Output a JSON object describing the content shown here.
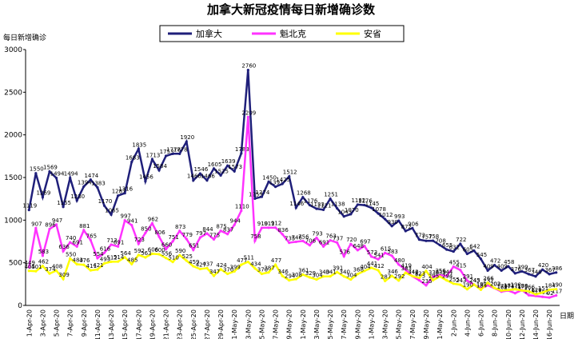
{
  "chart_data": {
    "type": "line",
    "title": "加拿大新冠疫情每日新增确诊数",
    "y_label": "每日新增确诊",
    "x_label": "日期",
    "categories": [
      "1-Apr-20",
      null,
      "3-Apr-20",
      null,
      "5-Apr-20",
      null,
      "7-Apr-20",
      null,
      "9-Apr-20",
      null,
      "11-Apr-20",
      null,
      "13-Apr-20",
      null,
      "15-Apr-20",
      null,
      "17-Apr-20",
      null,
      "19-Apr-20",
      null,
      "21-Apr-20",
      null,
      "23-Apr-20",
      null,
      "25-Apr-20",
      null,
      "27-Apr-20",
      null,
      "29-Apr-20",
      null,
      "1-May-20",
      null,
      "3-May-20",
      null,
      "5-May-20",
      null,
      "7-May-20",
      null,
      "9-May-20",
      null,
      "11-May-20",
      null,
      "13-May-20",
      null,
      "15-May-20",
      null,
      "17-May-20",
      null,
      "19-May-20",
      null,
      "21-May-20",
      null,
      "23-May-20",
      null,
      "25-May-20",
      null,
      "27-May-20",
      null,
      "29-May-20",
      null,
      "31-May-20",
      null,
      "2-Jun-20",
      null,
      "4-Jun-20",
      null,
      "6-Jun-20",
      null,
      "8-Jun-20",
      null,
      "10-Jun-20",
      null,
      "12-Jun-20",
      null,
      "14-Jun-20",
      null,
      "16-Jun-20",
      null
    ],
    "series": [
      {
        "name": "加拿大",
        "color": "#1f1f7a",
        "values": [
          1119,
          1550,
          1269,
          1569,
          1494,
          1155,
          1494,
          1230,
          1394,
          1474,
          1383,
          1170,
          1065,
          1287,
          1316,
          1683,
          1835,
          1456,
          1713,
          1584,
          1753,
          1778,
          1778,
          1920,
          1466,
          1546,
          1466,
          1605,
          1525,
          1639,
          1573,
          1783,
          2760,
          1253,
          1274,
          1450,
          1391,
          1425,
          1512,
          1146,
          1268,
          1176,
          1133,
          1121,
          1251,
          1138,
          1043,
          1070,
          1182,
          1176,
          1145,
          1078,
          1012,
          930,
          993,
          872,
          906,
          772,
          757,
          758,
          708,
          655,
          632,
          722,
          605,
          642,
          545,
          409,
          472,
          409,
          458,
          376,
          399,
          367,
          340,
          420,
          367,
          386
        ]
      },
      {
        "name": "魁北克",
        "color": "#ff33ff",
        "values": [
          449,
          907,
          583,
          896,
          947,
          636,
          740,
          691,
          881,
          765,
          554,
          616,
          713,
          691,
          997,
          941,
          723,
          850,
          962,
          806,
          660,
          751,
          873,
          779,
          651,
          797,
          844,
          775,
          875,
          837,
          944,
          1110,
          2209,
          758,
          910,
          911,
          912,
          836,
          735,
          746,
          756,
          706,
          793,
          691,
          763,
          737,
          576,
          720,
          648,
          697,
          573,
          541,
          615,
          583,
          480,
          419,
          342,
          295,
          235,
          336,
          356,
          344,
          455,
          415,
          291,
          243,
          199,
          237,
          202,
          162,
          174,
          143,
          180,
          119,
          111,
          101,
          92,
          117
        ]
      },
      {
        "name": "安省",
        "color": "#ffff00",
        "values": [
          405,
          401,
          462,
          374,
          408,
          309,
          550,
          483,
          476,
          411,
          421,
          493,
          512,
          514,
          564,
          485,
          592,
          563,
          606,
          600,
          556,
          510,
          590,
          525,
          459,
          427,
          437,
          347,
          424,
          370,
          399,
          477,
          511,
          434,
          370,
          387,
          477,
          346,
          294,
          308,
          361,
          329,
          304,
          340,
          341,
          391,
          340,
          304,
          368,
          404,
          441,
          412,
          287,
          346,
          292,
          383,
          344,
          323,
          404,
          295,
          339,
          294,
          255,
          243,
          190,
          245,
          184,
          266,
          203,
          174,
          181,
          190,
          175,
          166,
          129,
          151,
          184,
          190
        ]
      }
    ],
    "ylim": [
      0,
      3000
    ],
    "yticks": [
      0,
      500,
      1000,
      1500,
      2000,
      2500,
      3000
    ],
    "grid": false
  }
}
